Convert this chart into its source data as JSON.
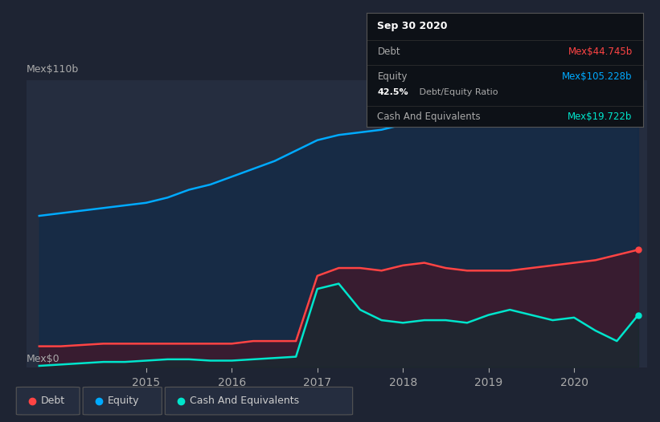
{
  "background_color": "#1e2433",
  "plot_bg_color": "#252d3f",
  "ylabel_top": "Mex$110b",
  "ylabel_bottom": "Mex$0",
  "x_ticks": [
    2015,
    2016,
    2017,
    2018,
    2019,
    2020
  ],
  "y_min": 0,
  "y_max": 110,
  "equity_color": "#00aaff",
  "debt_color": "#ff4444",
  "cash_color": "#00e5cc",
  "grid_color": "#2e3650",
  "tooltip": {
    "bg": "#0d1117",
    "border": "#555555",
    "title": "Sep 30 2020",
    "debt_label": "Debt",
    "debt_value": "Mex$44.745b",
    "equity_label": "Equity",
    "equity_value": "Mex$105.228b",
    "ratio_bold": "42.5%",
    "ratio_rest": " Debt/Equity Ratio",
    "cash_label": "Cash And Equivalents",
    "cash_value": "Mex$19.722b"
  },
  "legend": [
    {
      "label": "Debt",
      "color": "#ff4444"
    },
    {
      "label": "Equity",
      "color": "#00aaff"
    },
    {
      "label": "Cash And Equivalents",
      "color": "#00e5cc"
    }
  ],
  "equity_data": {
    "x": [
      2013.75,
      2014.0,
      2014.25,
      2014.5,
      2014.75,
      2015.0,
      2015.25,
      2015.5,
      2015.75,
      2016.0,
      2016.25,
      2016.5,
      2016.75,
      2017.0,
      2017.25,
      2017.5,
      2017.75,
      2018.0,
      2018.25,
      2018.5,
      2018.75,
      2019.0,
      2019.25,
      2019.5,
      2019.75,
      2020.0,
      2020.25,
      2020.5,
      2020.75
    ],
    "y": [
      58,
      59,
      60,
      61,
      62,
      63,
      65,
      68,
      70,
      73,
      76,
      79,
      83,
      87,
      89,
      90,
      91,
      93,
      94,
      95,
      96,
      98,
      100,
      103,
      106,
      108,
      106,
      104,
      105
    ]
  },
  "debt_data": {
    "x": [
      2013.75,
      2014.0,
      2014.25,
      2014.5,
      2014.75,
      2015.0,
      2015.25,
      2015.5,
      2015.75,
      2016.0,
      2016.25,
      2016.5,
      2016.75,
      2017.0,
      2017.25,
      2017.5,
      2017.75,
      2018.0,
      2018.25,
      2018.5,
      2018.75,
      2019.0,
      2019.25,
      2019.5,
      2019.75,
      2020.0,
      2020.25,
      2020.5,
      2020.75
    ],
    "y": [
      8,
      8,
      8.5,
      9,
      9,
      9,
      9,
      9,
      9,
      9,
      10,
      10,
      10,
      35,
      38,
      38,
      37,
      39,
      40,
      38,
      37,
      37,
      37,
      38,
      39,
      40,
      41,
      43,
      45
    ]
  },
  "cash_data": {
    "x": [
      2013.75,
      2014.0,
      2014.25,
      2014.5,
      2014.75,
      2015.0,
      2015.25,
      2015.5,
      2015.75,
      2016.0,
      2016.25,
      2016.5,
      2016.75,
      2017.0,
      2017.25,
      2017.5,
      2017.75,
      2018.0,
      2018.25,
      2018.5,
      2018.75,
      2019.0,
      2019.25,
      2019.5,
      2019.75,
      2020.0,
      2020.25,
      2020.5,
      2020.75
    ],
    "y": [
      0.5,
      1,
      1.5,
      2,
      2,
      2.5,
      3,
      3,
      2.5,
      2.5,
      3,
      3.5,
      4,
      30,
      32,
      22,
      18,
      17,
      18,
      18,
      17,
      20,
      22,
      20,
      18,
      19,
      14,
      10,
      20
    ]
  }
}
